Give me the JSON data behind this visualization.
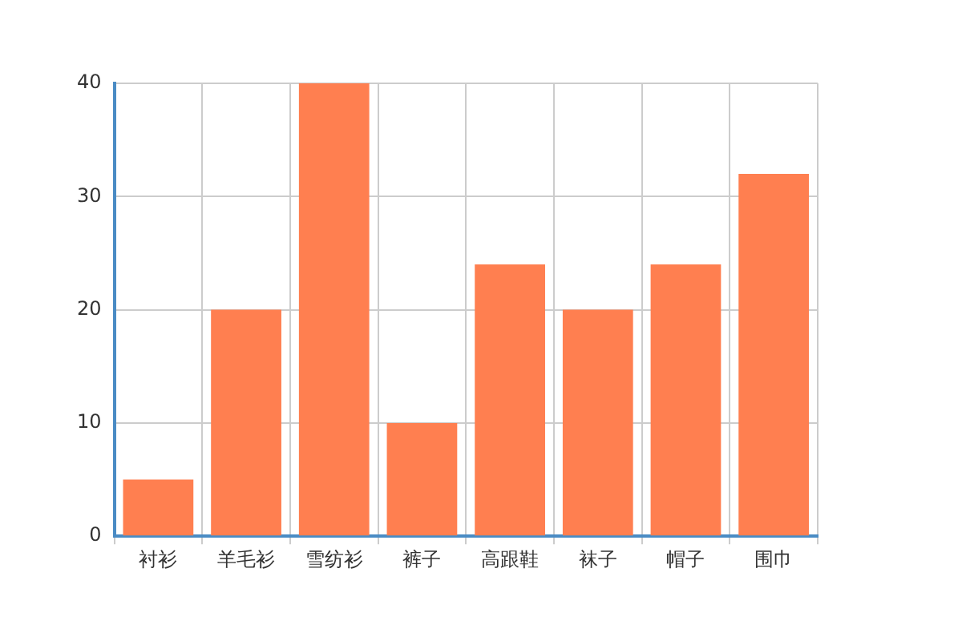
{
  "chart_data": {
    "type": "bar",
    "categories": [
      "衬衫",
      "羊毛衫",
      "雪纺衫",
      "裤子",
      "高跟鞋",
      "袜子",
      "帽子",
      "围巾"
    ],
    "values": [
      5,
      20,
      40,
      10,
      24,
      20,
      24,
      32
    ],
    "color": "#ff7f50",
    "ylim": [
      0,
      40
    ],
    "yticks": [
      0,
      10,
      20,
      30,
      40
    ],
    "grid": true
  }
}
